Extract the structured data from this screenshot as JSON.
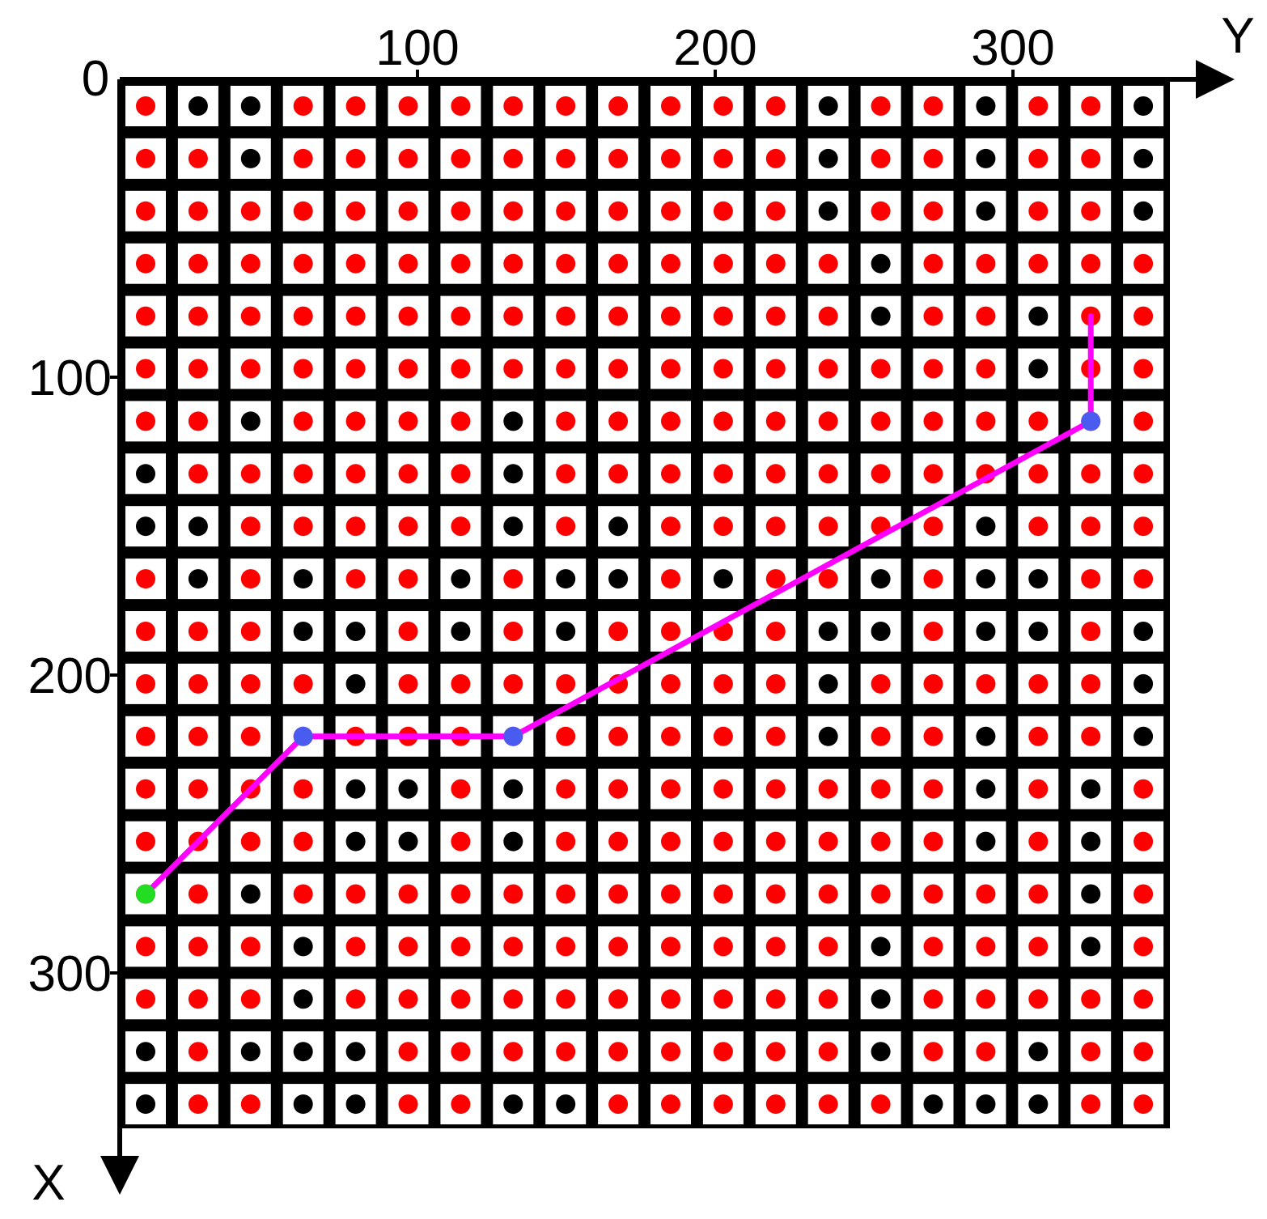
{
  "axes": {
    "origin": 0,
    "x_label": "X",
    "y_label": "Y",
    "x_ticks": [
      100,
      200,
      300
    ],
    "y_ticks": [
      100,
      200,
      300
    ]
  },
  "colors": {
    "free": "#ff0000",
    "obstacle": "#000000",
    "start": "#22dd22",
    "waypoint": "#4a5cf0",
    "path": "#ff00ff"
  },
  "cells": [
    [
      0,
      1,
      1,
      0,
      0,
      0,
      0,
      0,
      0,
      0,
      0,
      0,
      0,
      1,
      0,
      0,
      1,
      0,
      0,
      1
    ],
    [
      0,
      0,
      1,
      0,
      0,
      0,
      0,
      0,
      0,
      0,
      0,
      0,
      0,
      1,
      0,
      0,
      1,
      0,
      0,
      1
    ],
    [
      0,
      0,
      0,
      0,
      0,
      0,
      0,
      0,
      0,
      0,
      0,
      0,
      0,
      1,
      0,
      0,
      1,
      0,
      0,
      1
    ],
    [
      0,
      0,
      0,
      0,
      0,
      0,
      0,
      0,
      0,
      0,
      0,
      0,
      0,
      0,
      1,
      0,
      0,
      0,
      0,
      0
    ],
    [
      0,
      0,
      0,
      0,
      0,
      0,
      0,
      0,
      0,
      0,
      0,
      0,
      0,
      0,
      1,
      0,
      0,
      1,
      0,
      0
    ],
    [
      0,
      0,
      0,
      0,
      0,
      0,
      0,
      0,
      0,
      0,
      0,
      0,
      0,
      0,
      0,
      0,
      0,
      1,
      0,
      0
    ],
    [
      0,
      0,
      1,
      0,
      0,
      0,
      0,
      1,
      0,
      0,
      0,
      0,
      0,
      0,
      0,
      0,
      0,
      0,
      0,
      0
    ],
    [
      1,
      0,
      0,
      0,
      0,
      0,
      0,
      1,
      0,
      0,
      0,
      0,
      0,
      0,
      0,
      0,
      0,
      0,
      0,
      0
    ],
    [
      1,
      1,
      0,
      0,
      0,
      0,
      0,
      1,
      0,
      1,
      0,
      0,
      0,
      0,
      0,
      0,
      1,
      0,
      0,
      0
    ],
    [
      0,
      1,
      0,
      1,
      0,
      0,
      1,
      0,
      1,
      1,
      0,
      1,
      0,
      0,
      1,
      0,
      1,
      1,
      0,
      0
    ],
    [
      0,
      0,
      0,
      1,
      1,
      0,
      1,
      0,
      1,
      0,
      0,
      0,
      0,
      1,
      1,
      0,
      1,
      1,
      0,
      1
    ],
    [
      0,
      0,
      0,
      0,
      1,
      0,
      0,
      0,
      0,
      0,
      0,
      0,
      0,
      1,
      0,
      0,
      0,
      0,
      0,
      1
    ],
    [
      0,
      0,
      0,
      0,
      0,
      0,
      0,
      0,
      0,
      0,
      0,
      0,
      0,
      1,
      0,
      0,
      1,
      0,
      0,
      1
    ],
    [
      0,
      0,
      0,
      0,
      1,
      1,
      0,
      1,
      0,
      0,
      0,
      0,
      0,
      0,
      0,
      0,
      1,
      0,
      1,
      0
    ],
    [
      0,
      0,
      0,
      0,
      1,
      1,
      0,
      1,
      0,
      0,
      0,
      0,
      0,
      0,
      0,
      0,
      1,
      0,
      1,
      0
    ],
    [
      0,
      0,
      1,
      0,
      0,
      0,
      0,
      0,
      0,
      0,
      0,
      0,
      0,
      0,
      0,
      0,
      0,
      0,
      1,
      0
    ],
    [
      0,
      0,
      0,
      1,
      0,
      0,
      0,
      0,
      0,
      0,
      0,
      0,
      0,
      0,
      1,
      0,
      0,
      0,
      1,
      0
    ],
    [
      0,
      0,
      0,
      1,
      0,
      0,
      0,
      0,
      0,
      0,
      0,
      0,
      0,
      0,
      1,
      0,
      0,
      0,
      0,
      0
    ],
    [
      1,
      0,
      1,
      1,
      1,
      0,
      0,
      0,
      0,
      0,
      0,
      0,
      0,
      0,
      1,
      0,
      0,
      1,
      0,
      0
    ],
    [
      1,
      0,
      0,
      1,
      1,
      0,
      0,
      1,
      1,
      0,
      0,
      0,
      0,
      0,
      0,
      1,
      1,
      1,
      0,
      0
    ]
  ],
  "path": [
    [
      15,
      0
    ],
    [
      12,
      3
    ],
    [
      12,
      7
    ],
    [
      6,
      18
    ],
    [
      4,
      18
    ]
  ]
}
